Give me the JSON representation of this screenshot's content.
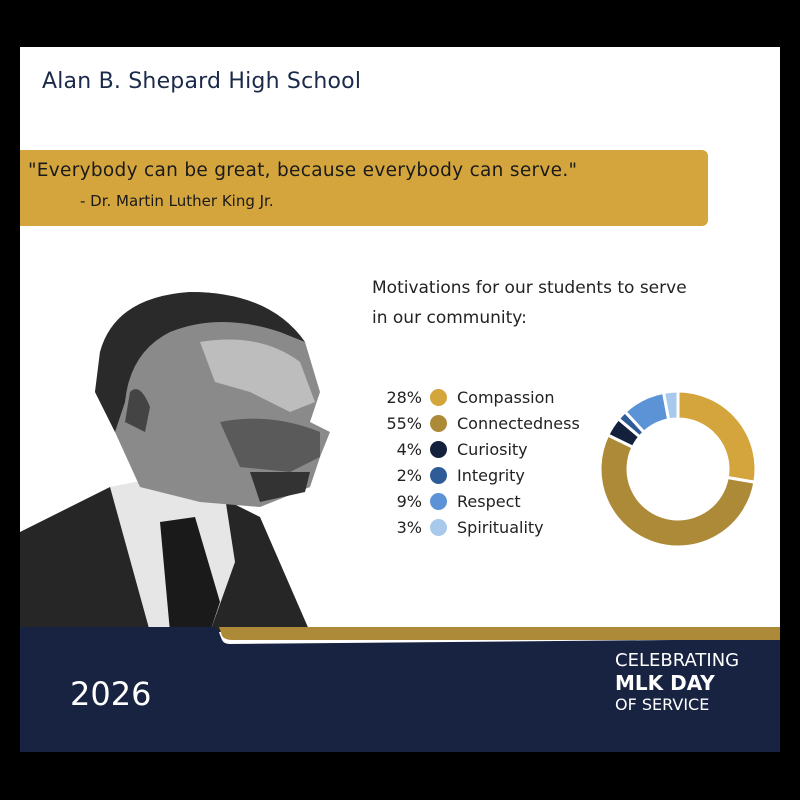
{
  "header": {
    "school_name": "Alan B. Shepard High School"
  },
  "quote": {
    "text": "\"Everybody can be great, because everybody can serve.\"",
    "attribution": "- Dr. Martin Luther King Jr."
  },
  "chart_data": {
    "type": "pie",
    "subtype": "donut",
    "title": "Motivations for our students to serve in our community:",
    "categories": [
      "Compassion",
      "Connectedness",
      "Curiosity",
      "Integrity",
      "Respect",
      "Spirituality"
    ],
    "values": [
      28,
      55,
      4,
      2,
      9,
      3
    ],
    "labels": [
      "28%",
      "55%",
      "4%",
      "2%",
      "9%",
      "3%"
    ],
    "colors": [
      "#d4a53c",
      "#ad8a37",
      "#14213d",
      "#2f5c99",
      "#5b93d6",
      "#a9c9ec"
    ],
    "legend": "left"
  },
  "footer": {
    "year": "2026",
    "line1": "CELEBRATING",
    "line2": "MLK DAY",
    "line3": "OF SERVICE"
  },
  "colors": {
    "navy": "#172340",
    "gold": "#ad8a37",
    "banner_gold": "#d4a53c"
  }
}
